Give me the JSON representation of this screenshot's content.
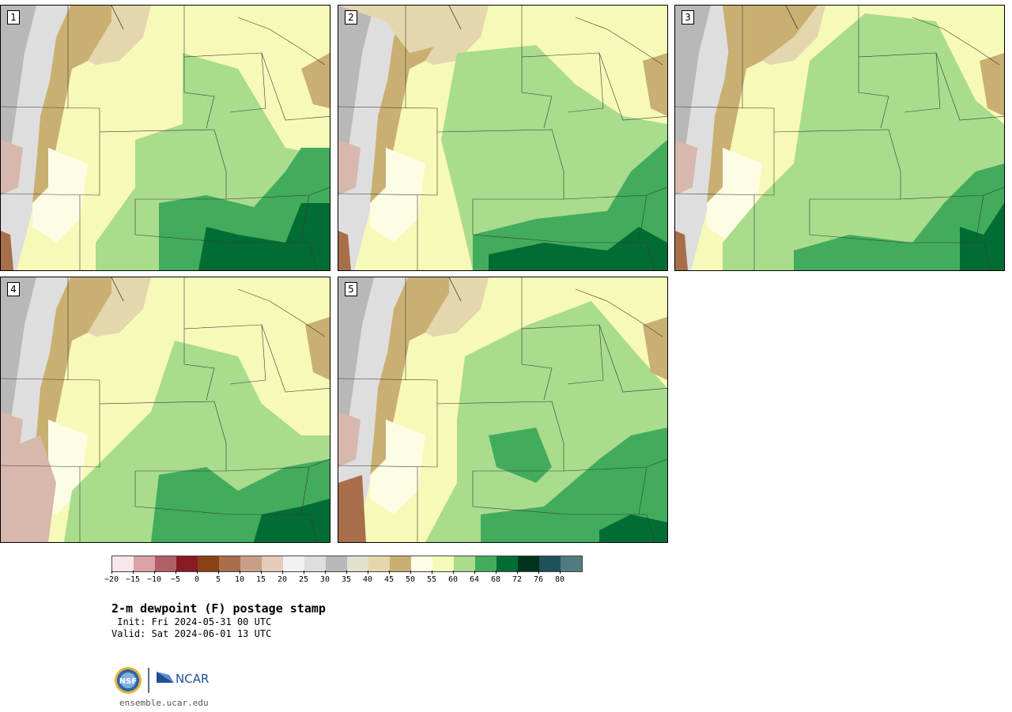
{
  "panels": [
    {
      "label": "1",
      "variant": 1
    },
    {
      "label": "2",
      "variant": 2
    },
    {
      "label": "3",
      "variant": 3
    },
    {
      "label": "4",
      "variant": 4
    },
    {
      "label": "5",
      "variant": 5
    }
  ],
  "colorbar": {
    "colors": [
      "#f6e8ea",
      "#d9a3a8",
      "#b05f66",
      "#861b24",
      "#8a4214",
      "#a86e4a",
      "#c89f86",
      "#e4cab8",
      "#f2f2f2",
      "#dedede",
      "#b8b8b8",
      "#e2e0cf",
      "#e4d7ae",
      "#c9b072",
      "#fdfde6",
      "#f7f9b8",
      "#a9dc8c",
      "#42ac5c",
      "#006d35",
      "#00331c",
      "#1c5358",
      "#507b80"
    ],
    "tick_labels": [
      "−20",
      "−15",
      "−10",
      "−5",
      "0",
      "5",
      "10",
      "15",
      "20",
      "25",
      "30",
      "35",
      "40",
      "45",
      "50",
      "55",
      "60",
      "64",
      "68",
      "72",
      "76",
      "80"
    ]
  },
  "title": "2-m dewpoint (F) postage stamp",
  "init_line": " Init: Fri 2024-05-31 00 UTC",
  "valid_line": "Valid: Sat 2024-06-01 13 UTC",
  "logos": {
    "nsf_text": "NSF",
    "ncar_text": "NCAR"
  },
  "url": "ensemble.ucar.edu"
}
